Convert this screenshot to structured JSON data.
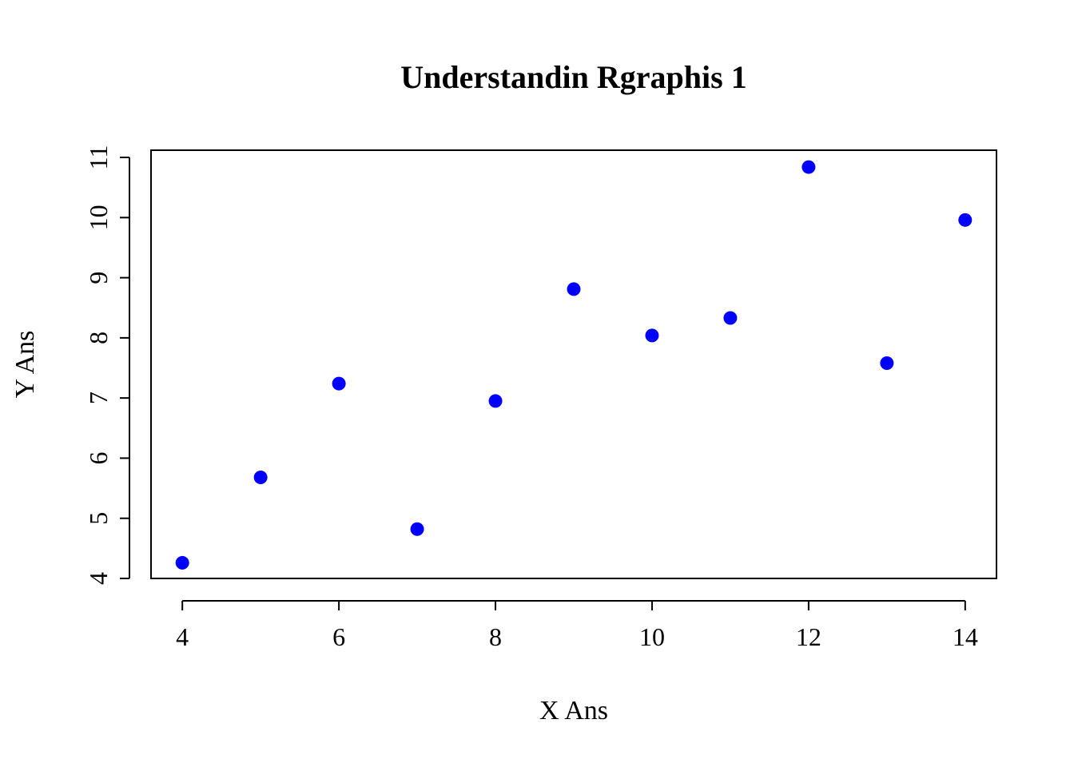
{
  "chart_data": {
    "type": "scatter",
    "title": "Understandin Rgraphis 1",
    "xlabel": "X Ans",
    "ylabel": "Y Ans",
    "xlim": [
      3.6,
      14.4
    ],
    "ylim": [
      4,
      11.12
    ],
    "x_ticks": [
      4,
      6,
      8,
      10,
      12,
      14
    ],
    "y_ticks": [
      4,
      5,
      6,
      7,
      8,
      9,
      10,
      11
    ],
    "grid": false,
    "legend": "none",
    "marker_color": "#0000ff",
    "series": [
      {
        "x": [
          4,
          5,
          6,
          7,
          8,
          9,
          10,
          11,
          12,
          13,
          14
        ],
        "y": [
          4.26,
          5.68,
          7.24,
          4.82,
          6.95,
          8.81,
          8.04,
          8.33,
          10.84,
          7.58,
          9.96
        ]
      }
    ]
  }
}
